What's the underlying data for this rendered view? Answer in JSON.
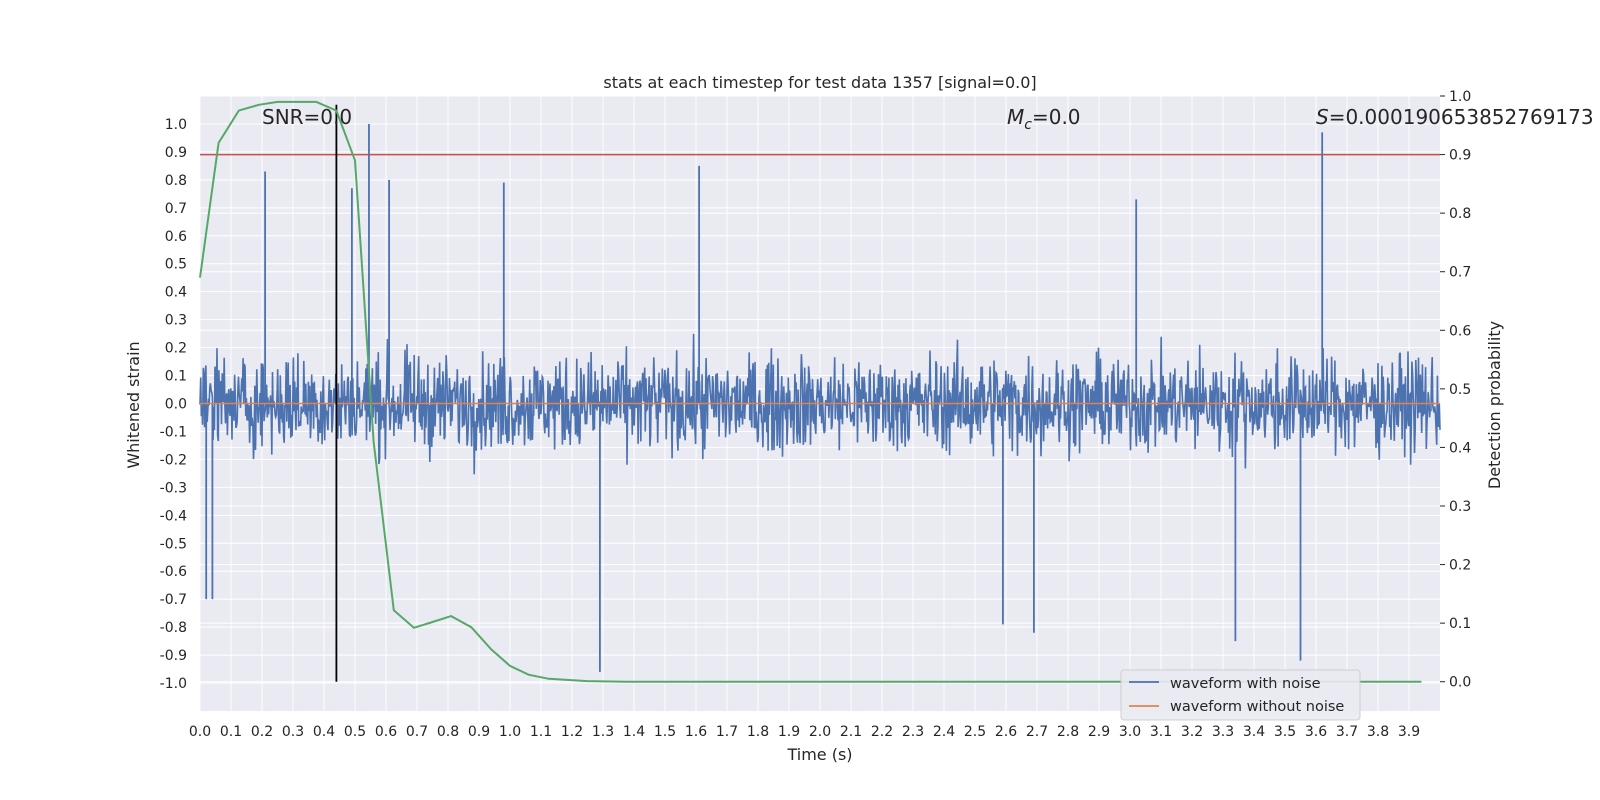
{
  "chart_data": {
    "type": "line",
    "title": "stats at each timestep for test data 1357 [signal=0.0]",
    "xlabel": "Time (s)",
    "ylabel": "Whitened strain",
    "y2label": "Detection probability",
    "xlim": [
      0.0,
      4.0
    ],
    "ylim": [
      -1.1,
      1.1
    ],
    "y2lim": [
      -0.05,
      1.0
    ],
    "x_ticks": [
      "0.0",
      "0.1",
      "0.2",
      "0.3",
      "0.4",
      "0.5",
      "0.6",
      "0.7",
      "0.8",
      "0.9",
      "1.0",
      "1.1",
      "1.2",
      "1.3",
      "1.4",
      "1.5",
      "1.6",
      "1.7",
      "1.8",
      "1.9",
      "2.0",
      "2.1",
      "2.2",
      "2.3",
      "2.4",
      "2.5",
      "2.6",
      "2.7",
      "2.8",
      "2.9",
      "3.0",
      "3.1",
      "3.2",
      "3.3",
      "3.4",
      "3.5",
      "3.6",
      "3.7",
      "3.8",
      "3.9"
    ],
    "y_ticks": [
      "1.0",
      "0.9",
      "0.8",
      "0.7",
      "0.6",
      "0.5",
      "0.4",
      "0.3",
      "0.2",
      "0.1",
      "0.0",
      "-0.1",
      "-0.2",
      "-0.3",
      "-0.4",
      "-0.5",
      "-0.6",
      "-0.7",
      "-0.8",
      "-0.9",
      "-1.0"
    ],
    "y2_ticks": [
      "1.0",
      "0.9",
      "0.8",
      "0.7",
      "0.6",
      "0.5",
      "0.4",
      "0.3",
      "0.2",
      "0.1",
      "0.0"
    ],
    "threshold_y2": 0.9,
    "marker_time": 0.44,
    "annotations": {
      "snr": "SNR=0.0",
      "mc_symbol": "M",
      "mc_sub": "c",
      "mc_value": "=0.0",
      "s_symbol": "S",
      "s_value": "=0.000190653852769173"
    },
    "series": [
      {
        "name": "waveform with noise",
        "color": "#4c72b0",
        "envelope_note": "noise roughly within ±0.4 with spikes",
        "spikes": [
          {
            "x": 0.21,
            "y": 0.83
          },
          {
            "x": 0.545,
            "y": 1.0
          },
          {
            "x": 0.61,
            "y": 0.8
          },
          {
            "x": 1.61,
            "y": 0.85
          },
          {
            "x": 3.62,
            "y": 0.97
          },
          {
            "x": 1.29,
            "y": -0.96
          },
          {
            "x": 3.55,
            "y": -0.92
          },
          {
            "x": 3.34,
            "y": -0.85
          },
          {
            "x": 2.69,
            "y": -0.82
          },
          {
            "x": 2.59,
            "y": -0.79
          },
          {
            "x": 0.02,
            "y": -0.7
          },
          {
            "x": 0.04,
            "y": -0.7
          },
          {
            "x": 0.49,
            "y": 0.77
          },
          {
            "x": 0.98,
            "y": 0.79
          },
          {
            "x": 3.02,
            "y": 0.73
          }
        ]
      },
      {
        "name": "waveform without noise",
        "color": "#dd8452",
        "values_note": "flat at 0.0"
      },
      {
        "name": "detection probability",
        "color": "#55a868",
        "axis": "y2",
        "x": [
          0.0,
          0.06,
          0.125,
          0.19,
          0.25,
          0.31,
          0.375,
          0.44,
          0.5,
          0.56,
          0.625,
          0.69,
          0.75,
          0.81,
          0.875,
          0.94,
          1.0,
          1.06,
          1.125,
          1.25,
          1.375,
          1.5,
          2.0,
          3.0,
          3.94
        ],
        "y": [
          0.69,
          0.92,
          0.975,
          0.985,
          0.99,
          0.99,
          0.99,
          0.975,
          0.89,
          0.41,
          0.122,
          0.092,
          0.102,
          0.112,
          0.093,
          0.055,
          0.027,
          0.012,
          0.005,
          0.001,
          0.0,
          0.0,
          0.0,
          0.0,
          0.0
        ]
      }
    ],
    "legend": {
      "placement": "bottom-right",
      "entries": [
        {
          "label": "waveform with noise",
          "color": "#4c72b0"
        },
        {
          "label": "waveform without noise",
          "color": "#dd8452"
        }
      ]
    }
  }
}
